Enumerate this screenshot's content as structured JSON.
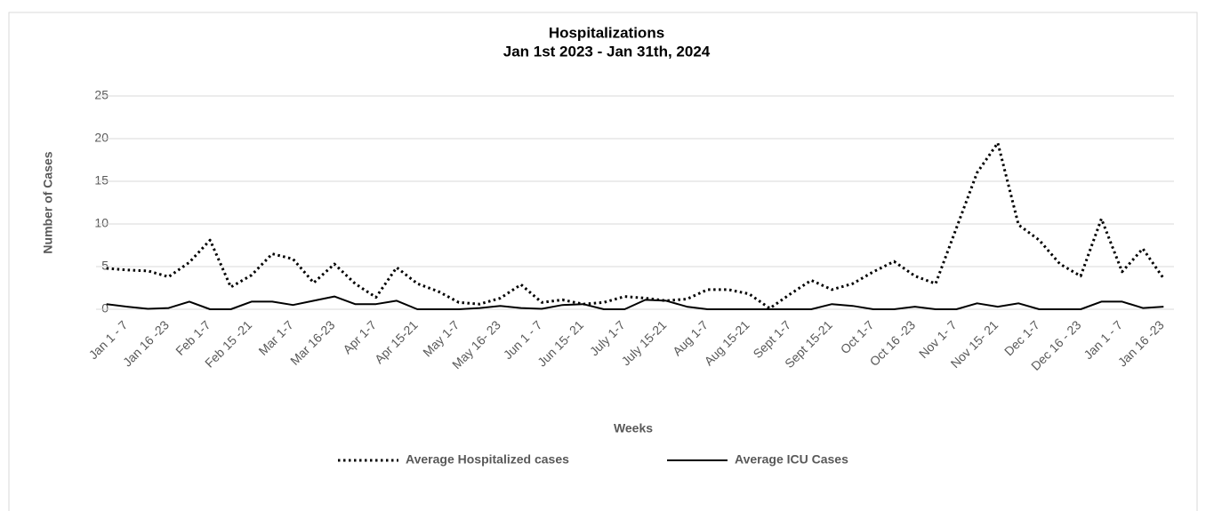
{
  "chart_data": {
    "type": "line",
    "title": "Hospitalizations",
    "subtitle": "Jan 1st 2023 - Jan 31th, 2024",
    "x_label": "Weeks",
    "y_label": "Number of Cases",
    "categories": [
      "Jan 1 - 7",
      null,
      "Jan 16 -23",
      null,
      "Feb 1-7",
      null,
      "Feb 15 -21",
      null,
      "Mar 1-7",
      null,
      "Mar 16-23",
      null,
      "Apr 1-7",
      null,
      "Apr 15-21",
      null,
      "May 1-7",
      null,
      "May 16- 23",
      null,
      "Jun 1 - 7",
      null,
      "Jun 15- 21",
      null,
      "July 1-7",
      null,
      "July 15-21",
      null,
      "Aug 1-7",
      null,
      "Aug 15-21",
      null,
      "Sept 1-7",
      null,
      "Sept 15-21",
      null,
      "Oct 1-7",
      null,
      "Oct 16 -23",
      null,
      "Nov 1- 7",
      null,
      "Nov 15- 21",
      null,
      "Dec 1-7",
      null,
      "Dec 16 - 23",
      null,
      "Jan 1 - 7",
      null,
      "Jan 16 -23",
      null
    ],
    "series": [
      {
        "name": "Average Hospitalized cases",
        "color": "#000000",
        "line_style": "dotted",
        "values": [
          4.8,
          4.6,
          4.5,
          3.8,
          5.5,
          8.1,
          2.6,
          4.0,
          6.5,
          5.9,
          3.1,
          5.3,
          3.0,
          1.4,
          4.9,
          3.0,
          2.1,
          0.8,
          0.6,
          1.3,
          2.9,
          0.8,
          1.1,
          0.6,
          0.8,
          1.5,
          1.3,
          1.0,
          1.2,
          2.3,
          2.3,
          1.8,
          0.1,
          1.8,
          3.4,
          2.3,
          3.0,
          4.4,
          5.6,
          3.9,
          3.0,
          9.5,
          16.0,
          19.5,
          9.9,
          8.1,
          5.3,
          3.9,
          10.6,
          4.4,
          7.1,
          3.6
        ]
      },
      {
        "name": "Average ICU Cases",
        "color": "#000000",
        "line_style": "solid",
        "values": [
          0.6,
          0.3,
          0.05,
          0.15,
          0.9,
          0,
          0,
          0.9,
          0.9,
          0.5,
          1.0,
          1.5,
          0.6,
          0.6,
          1.0,
          0,
          0,
          0,
          0.15,
          0.4,
          0.15,
          0.05,
          0.5,
          0.6,
          0,
          0,
          1.1,
          1.0,
          0.3,
          0,
          0,
          0,
          0,
          0,
          0,
          0.6,
          0.4,
          0,
          0,
          0.3,
          0,
          0,
          0.7,
          0.3,
          0.7,
          0,
          0,
          0,
          0.9,
          0.9,
          0.15,
          0.3
        ]
      }
    ],
    "ylim": [
      0,
      25
    ],
    "yticks": [
      0,
      5,
      10,
      15,
      20,
      25
    ],
    "grid": true,
    "legend": "bottom"
  }
}
